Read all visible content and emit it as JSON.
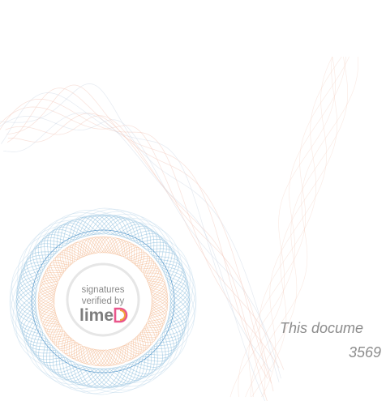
{
  "badge": {
    "line1": "signatures",
    "line2": "verified by",
    "logo": "lime"
  },
  "footer": {
    "line1": "This docume",
    "line2": "3569"
  }
}
